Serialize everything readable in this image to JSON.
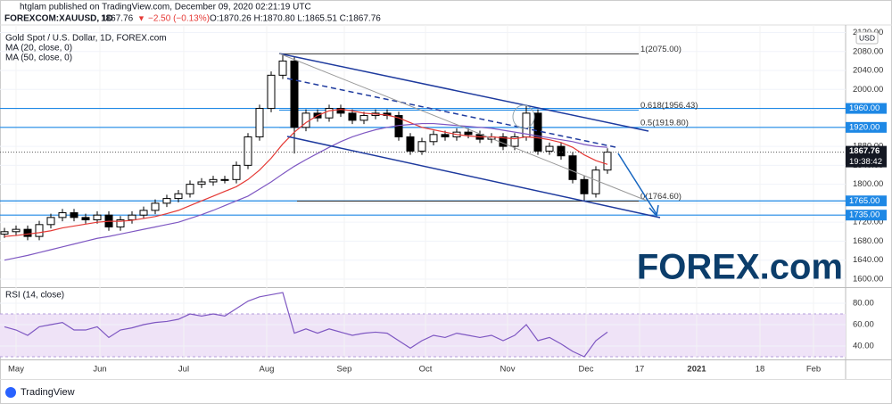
{
  "chart_data": {
    "type": "candlestick",
    "header": "htglam published on TradingView.com, December 09, 2020 02:21:19 UTC",
    "symbol_line": "FOREXCOM:XAUUSD, 1D",
    "last_price_text": "1867.76",
    "change_arrow": "▼",
    "change_text": "−2.50 (−0.13%)",
    "ohlc_text": "O:1870.26 H:1870.80 L:1865.51 C:1867.76",
    "title": "Gold Spot / U.S. Dollar, 1D, FOREX.com",
    "currency": "USD",
    "logo": "FOREX.com",
    "footer": "TradingView",
    "ylim": [
      1583,
      2136
    ],
    "yticks": [
      {
        "value": 1600,
        "label": "1600.00"
      },
      {
        "value": 1640,
        "label": "1640.00"
      },
      {
        "value": 1680,
        "label": "1680.00"
      },
      {
        "value": 1720,
        "label": "1720.00"
      },
      {
        "value": 1760,
        "label": "1760.00"
      },
      {
        "value": 1800,
        "label": "1800.00"
      },
      {
        "value": 1840,
        "label": "1840.00"
      },
      {
        "value": 1880,
        "label": "1880.00"
      },
      {
        "value": 1920,
        "label": "1920.00"
      },
      {
        "value": 1960,
        "label": "1960.00"
      },
      {
        "value": 2000,
        "label": "2000.00"
      },
      {
        "value": 2040,
        "label": "2040.00"
      },
      {
        "value": 2080,
        "label": "2080.00"
      },
      {
        "value": 2120,
        "label": "2120.00"
      }
    ],
    "xtick_labels": [
      "May",
      "Jun",
      "Jul",
      "Aug",
      "Sep",
      "Oct",
      "Nov",
      "Dec",
      "17",
      "2021",
      "18",
      "Feb"
    ],
    "levels": [
      {
        "value": 1960,
        "label": "1960.00"
      },
      {
        "value": 1920,
        "label": "1920.00"
      },
      {
        "value": 1765,
        "label": "1765.00"
      },
      {
        "value": 1735,
        "label": "1735.00"
      }
    ],
    "fib_levels": [
      {
        "value": 2075,
        "label": "1(2075.00)"
      },
      {
        "value": 1956.43,
        "label": "0.618(1956.43)"
      },
      {
        "value": 1919.8,
        "label": "0.5(1919.80)"
      },
      {
        "value": 1764.6,
        "label": "0(1764.60)"
      }
    ],
    "last_price": {
      "value": 1867.76,
      "label": "1867.76"
    },
    "countdown": "19:38:42",
    "candles": {
      "open": [
        1695,
        1700,
        1705,
        1690,
        1715,
        1730,
        1740,
        1730,
        1725,
        1735,
        1710,
        1725,
        1735,
        1745,
        1760,
        1770,
        1780,
        1800,
        1805,
        1810,
        1810,
        1840,
        1900,
        1960,
        2030,
        2060,
        1920,
        1950,
        1940,
        1960,
        1950,
        1935,
        1945,
        1950,
        1945,
        1900,
        1870,
        1890,
        1905,
        1900,
        1910,
        1905,
        1895,
        1900,
        1880,
        1900,
        1950,
        1870,
        1880,
        1860,
        1810,
        1780,
        1830
      ],
      "high": [
        1708,
        1713,
        1713,
        1723,
        1738,
        1748,
        1748,
        1738,
        1743,
        1743,
        1733,
        1743,
        1753,
        1768,
        1778,
        1788,
        1808,
        1813,
        1818,
        1818,
        1848,
        1908,
        1968,
        2038,
        2075,
        2068,
        1958,
        1958,
        1968,
        1968,
        1958,
        1953,
        1958,
        1958,
        1953,
        1908,
        1898,
        1913,
        1913,
        1918,
        1918,
        1913,
        1908,
        1908,
        1908,
        1965,
        1958,
        1888,
        1888,
        1868,
        1818,
        1838,
        1876
      ],
      "low": [
        1687,
        1692,
        1682,
        1682,
        1707,
        1722,
        1722,
        1717,
        1717,
        1702,
        1702,
        1717,
        1727,
        1737,
        1752,
        1762,
        1772,
        1792,
        1797,
        1802,
        1802,
        1832,
        1892,
        1952,
        2022,
        1865,
        1912,
        1932,
        1932,
        1942,
        1927,
        1927,
        1937,
        1937,
        1892,
        1862,
        1862,
        1882,
        1892,
        1892,
        1897,
        1887,
        1887,
        1872,
        1872,
        1892,
        1862,
        1862,
        1852,
        1802,
        1764,
        1772,
        1822
      ],
      "close": [
        1700,
        1705,
        1690,
        1715,
        1730,
        1740,
        1730,
        1725,
        1735,
        1710,
        1725,
        1735,
        1745,
        1760,
        1770,
        1780,
        1800,
        1805,
        1810,
        1810,
        1840,
        1900,
        1960,
        2030,
        2060,
        1920,
        1950,
        1940,
        1960,
        1950,
        1935,
        1945,
        1950,
        1945,
        1900,
        1870,
        1890,
        1905,
        1900,
        1910,
        1905,
        1895,
        1900,
        1880,
        1900,
        1950,
        1870,
        1880,
        1860,
        1810,
        1780,
        1830,
        1867.76
      ]
    },
    "series": [
      {
        "name": "MA (20, close, 0)",
        "color": "#e53935",
        "values": [
          1690,
          1692,
          1695,
          1698,
          1702,
          1708,
          1712,
          1716,
          1720,
          1722,
          1722,
          1724,
          1728,
          1732,
          1738,
          1745,
          1755,
          1765,
          1775,
          1785,
          1795,
          1810,
          1830,
          1855,
          1885,
          1910,
          1930,
          1945,
          1955,
          1958,
          1955,
          1950,
          1948,
          1946,
          1940,
          1930,
          1920,
          1915,
          1910,
          1905,
          1902,
          1900,
          1900,
          1898,
          1896,
          1900,
          1898,
          1894,
          1888,
          1878,
          1862,
          1850,
          1842
        ]
      },
      {
        "name": "MA (50, close, 0)",
        "color": "#7e57c2",
        "values": [
          1640,
          1645,
          1650,
          1656,
          1662,
          1668,
          1674,
          1680,
          1686,
          1690,
          1695,
          1700,
          1705,
          1710,
          1715,
          1720,
          1728,
          1736,
          1745,
          1755,
          1765,
          1775,
          1790,
          1805,
          1822,
          1838,
          1852,
          1865,
          1878,
          1890,
          1900,
          1908,
          1915,
          1920,
          1924,
          1926,
          1928,
          1928,
          1926,
          1924,
          1922,
          1920,
          1918,
          1914,
          1910,
          1906,
          1902,
          1898,
          1894,
          1890,
          1884,
          1880,
          1878
        ]
      }
    ],
    "rsi": {
      "name": "RSI (14, close)",
      "color": "#7e57c2",
      "ylim": [
        27.5,
        94.2
      ],
      "yticks": [
        {
          "value": 40,
          "label": "40.00"
        },
        {
          "value": 60,
          "label": "60.00"
        },
        {
          "value": 80,
          "label": "80.00"
        }
      ],
      "values": [
        58,
        55,
        50,
        58,
        60,
        62,
        55,
        55,
        58,
        48,
        55,
        57,
        60,
        62,
        63,
        65,
        70,
        68,
        70,
        68,
        75,
        82,
        86,
        88,
        90,
        52,
        56,
        52,
        56,
        53,
        50,
        52,
        53,
        52,
        45,
        38,
        45,
        50,
        48,
        52,
        50,
        48,
        50,
        45,
        50,
        60,
        45,
        48,
        42,
        35,
        30,
        45,
        53
      ]
    }
  }
}
